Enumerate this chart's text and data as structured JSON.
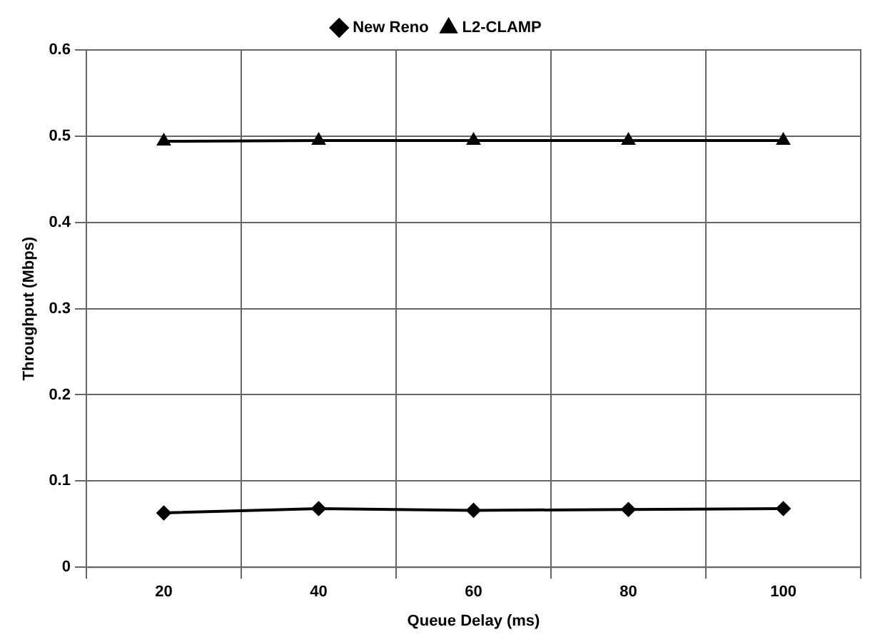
{
  "chart_data": {
    "type": "line",
    "xlabel": "Queue Delay (ms)",
    "ylabel": "Throughput (Mbps)",
    "categories": [
      "20",
      "40",
      "60",
      "80",
      "100"
    ],
    "series": [
      {
        "name": "New Reno",
        "color": "#000000",
        "marker": "diamond",
        "values": [
          0.063,
          0.068,
          0.066,
          0.067,
          0.068
        ]
      },
      {
        "name": "L2-CLAMP",
        "color": "#000000",
        "marker": "triangle",
        "values": [
          0.494,
          0.495,
          0.495,
          0.495,
          0.495
        ]
      }
    ],
    "ylim": [
      0,
      0.6
    ],
    "yticks": [
      0,
      0.1,
      0.2,
      0.3,
      0.4,
      0.5,
      0.6
    ],
    "grid": true,
    "legend": "top",
    "line_style": "solid"
  }
}
